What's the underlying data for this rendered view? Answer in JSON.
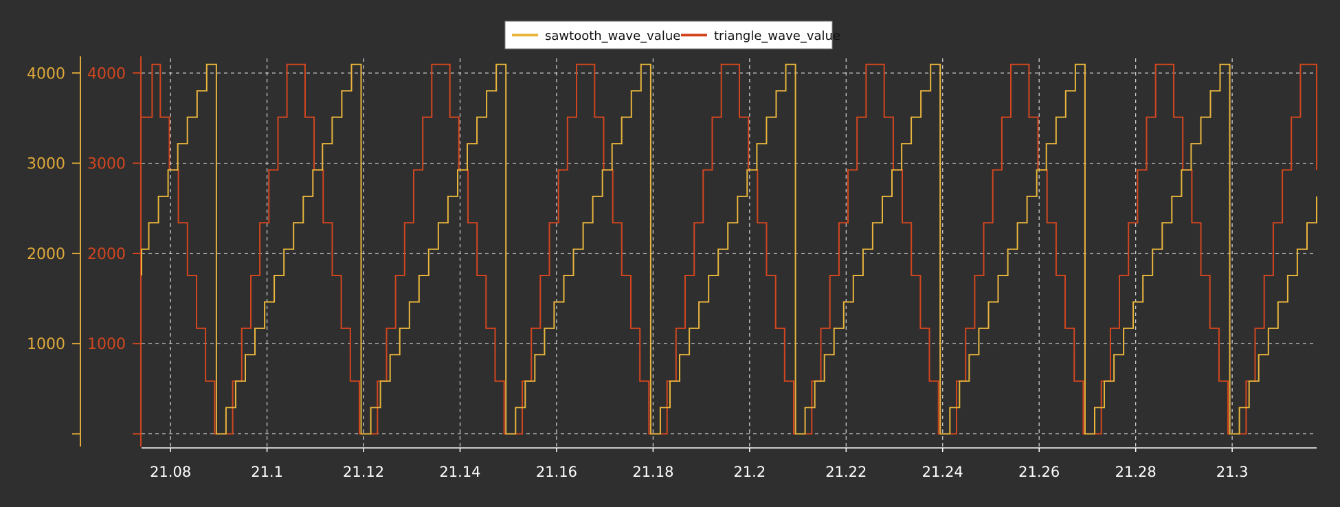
{
  "chart_data": {
    "type": "line",
    "step": true,
    "title": "",
    "xlabel": "",
    "grid": true,
    "legend_position": "top-center",
    "background_color": "#2f2f2f",
    "grid_color": "#d9d9d9",
    "x_axis": {
      "ticks": [
        "21.08",
        "21.1",
        "21.12",
        "21.14",
        "21.16",
        "21.18",
        "21.2",
        "21.22",
        "21.24",
        "21.26",
        "21.28",
        "21.3"
      ],
      "tick_values": [
        21.08,
        21.1,
        21.12,
        21.14,
        21.16,
        21.18,
        21.2,
        21.22,
        21.24,
        21.26,
        21.28,
        21.3
      ],
      "range": [
        21.074,
        21.3175
      ],
      "color": "#ffffff"
    },
    "y_axes": [
      {
        "side": "left-outer",
        "color": "#e0a93a",
        "ticks": [
          "1000",
          "2000",
          "3000",
          "4000"
        ],
        "tick_values": [
          1000,
          2000,
          3000,
          4000
        ],
        "range": [
          -80,
          4200
        ],
        "series": "sawtooth_wave_value"
      },
      {
        "side": "left-inner",
        "color": "#d2461f",
        "ticks": [
          "1000",
          "2000",
          "3000",
          "4000"
        ],
        "tick_values": [
          1000,
          2000,
          3000,
          4000
        ],
        "range": [
          -80,
          4200
        ],
        "series": "triangle_wave_value"
      }
    ],
    "series": [
      {
        "name": "sawtooth_wave_value",
        "color": "#e8b53c",
        "kind": "sawtooth",
        "period": 0.03,
        "levels": [
          0,
          292,
          585,
          877,
          1170,
          1462,
          1755,
          2047,
          2340,
          2632,
          2925,
          3217,
          3510,
          3802,
          4095
        ],
        "reset_times": [
          21.0895,
          21.1195,
          21.1495,
          21.1795,
          21.2095,
          21.2395,
          21.2695,
          21.2995
        ],
        "start_value": 1755,
        "end_value": 2632
      },
      {
        "name": "triangle_wave_value",
        "color": "#d2461f",
        "kind": "triangle",
        "period": 0.03,
        "levels": [
          0,
          585,
          1170,
          1755,
          2340,
          2925,
          3510,
          4095
        ],
        "peak_times": [
          21.0762,
          21.1062,
          21.1362,
          21.1662,
          21.1962,
          21.2262,
          21.2562,
          21.2862,
          21.3162
        ],
        "trough_times": [
          21.0912,
          21.1212,
          21.1512,
          21.1812,
          21.2112,
          21.2412,
          21.2712,
          21.3012
        ],
        "start_value": 3510,
        "end_value": 2925
      }
    ]
  }
}
